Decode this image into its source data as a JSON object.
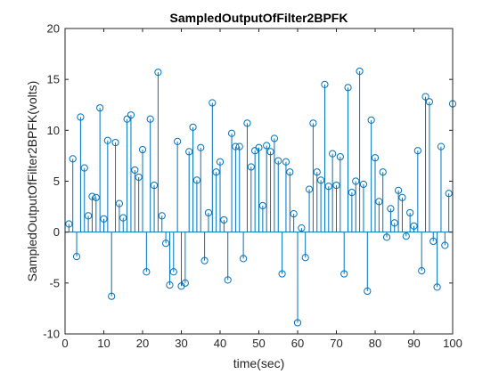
{
  "chart_data": {
    "type": "stem",
    "title": "SampledOutputOfFilter2BPFK",
    "xlabel": "time(sec)",
    "ylabel": "SampledOutputOfFilter2BPFK(volts)",
    "xlim": [
      0,
      100
    ],
    "ylim": [
      -10,
      20
    ],
    "xticks": [
      "0",
      "10",
      "20",
      "30",
      "40",
      "50",
      "60",
      "70",
      "80",
      "90",
      "100"
    ],
    "yticks": [
      "-10",
      "-5",
      "0",
      "5",
      "10",
      "15",
      "20"
    ],
    "grid": false,
    "series": [
      {
        "color": "#0072BD",
        "x": [
          1,
          2,
          3,
          4,
          5,
          6,
          7,
          8,
          9,
          10,
          11,
          12,
          13,
          14,
          15,
          16,
          17,
          18,
          19,
          20,
          21,
          22,
          23,
          24,
          25,
          26,
          27,
          28,
          29,
          30,
          31,
          32,
          33,
          34,
          35,
          36,
          37,
          38,
          39,
          40,
          41,
          42,
          43,
          44,
          45,
          46,
          47,
          48,
          49,
          50,
          51,
          52,
          53,
          54,
          55,
          56,
          57,
          58,
          59,
          60,
          61,
          62,
          63,
          64,
          65,
          66,
          67,
          68,
          69,
          70,
          71,
          72,
          73,
          74,
          75,
          76,
          77,
          78,
          79,
          80,
          81,
          82,
          83,
          84,
          85,
          86,
          87,
          88,
          89,
          90,
          91,
          92,
          93,
          94,
          95,
          96,
          97,
          98,
          99,
          100
        ],
        "y": [
          0.8,
          7.2,
          -2.4,
          11.3,
          6.3,
          1.6,
          3.5,
          3.4,
          12.2,
          1.3,
          9.0,
          -6.3,
          8.8,
          2.8,
          1.4,
          11.1,
          11.5,
          6.1,
          5.4,
          8.1,
          -3.9,
          11.1,
          4.6,
          15.7,
          1.6,
          -1.1,
          -5.2,
          -3.9,
          8.9,
          -5.3,
          -5.0,
          7.9,
          10.3,
          5.1,
          8.3,
          -2.8,
          1.9,
          12.7,
          5.9,
          6.9,
          1.2,
          -4.7,
          9.7,
          8.4,
          8.4,
          -2.6,
          10.7,
          6.4,
          8.0,
          8.3,
          2.6,
          8.5,
          7.9,
          9.2,
          7.0,
          -4.1,
          6.9,
          5.9,
          1.8,
          -8.9,
          0.4,
          -2.5,
          4.2,
          10.7,
          5.9,
          5.1,
          14.5,
          4.5,
          7.7,
          4.6,
          7.4,
          -4.1,
          14.2,
          3.9,
          5.0,
          15.8,
          4.7,
          -5.8,
          11.0,
          7.3,
          3.0,
          5.9,
          -0.5,
          2.3,
          0.9,
          4.1,
          3.4,
          -0.4,
          1.9,
          0.6,
          8.0,
          -3.8,
          13.3,
          12.8,
          -0.9,
          -5.4,
          8.4,
          -1.3,
          3.8,
          12.6
        ]
      }
    ]
  }
}
